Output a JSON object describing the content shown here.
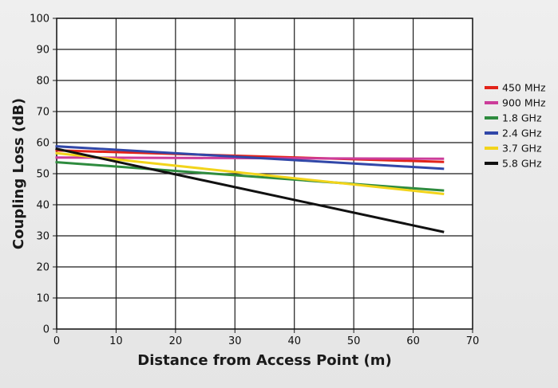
{
  "chart_data": {
    "type": "line",
    "title": "",
    "xlabel": "Distance from Access Point (m)",
    "ylabel": "Coupling Loss (dB)",
    "xlim": [
      0,
      70
    ],
    "ylim": [
      0,
      100
    ],
    "xticks": [
      "0",
      "10",
      "20",
      "30",
      "40",
      "50",
      "60",
      "70"
    ],
    "yticks": [
      "0",
      "10",
      "20",
      "30",
      "40",
      "50",
      "60",
      "70",
      "80",
      "90",
      "100"
    ],
    "grid": true,
    "legend_position": "right",
    "series": [
      {
        "name": "450 MHz",
        "color": "#e2231a",
        "x": [
          0,
          65
        ],
        "y": [
          57.5,
          53.8
        ]
      },
      {
        "name": "900 MHz",
        "color": "#cc3d9a",
        "x": [
          0,
          65
        ],
        "y": [
          55.2,
          54.8
        ]
      },
      {
        "name": "1.8 GHz",
        "color": "#2e8b3e",
        "x": [
          0,
          65
        ],
        "y": [
          53.7,
          44.6
        ]
      },
      {
        "name": "2.4 GHz",
        "color": "#3147a8",
        "x": [
          0,
          65
        ],
        "y": [
          58.8,
          51.6
        ]
      },
      {
        "name": "3.7 GHz",
        "color": "#f2d41b",
        "x": [
          0,
          65
        ],
        "y": [
          56.6,
          43.5
        ]
      },
      {
        "name": "5.8 GHz",
        "color": "#111111",
        "x": [
          0,
          65
        ],
        "y": [
          58.0,
          31.3
        ]
      }
    ]
  }
}
